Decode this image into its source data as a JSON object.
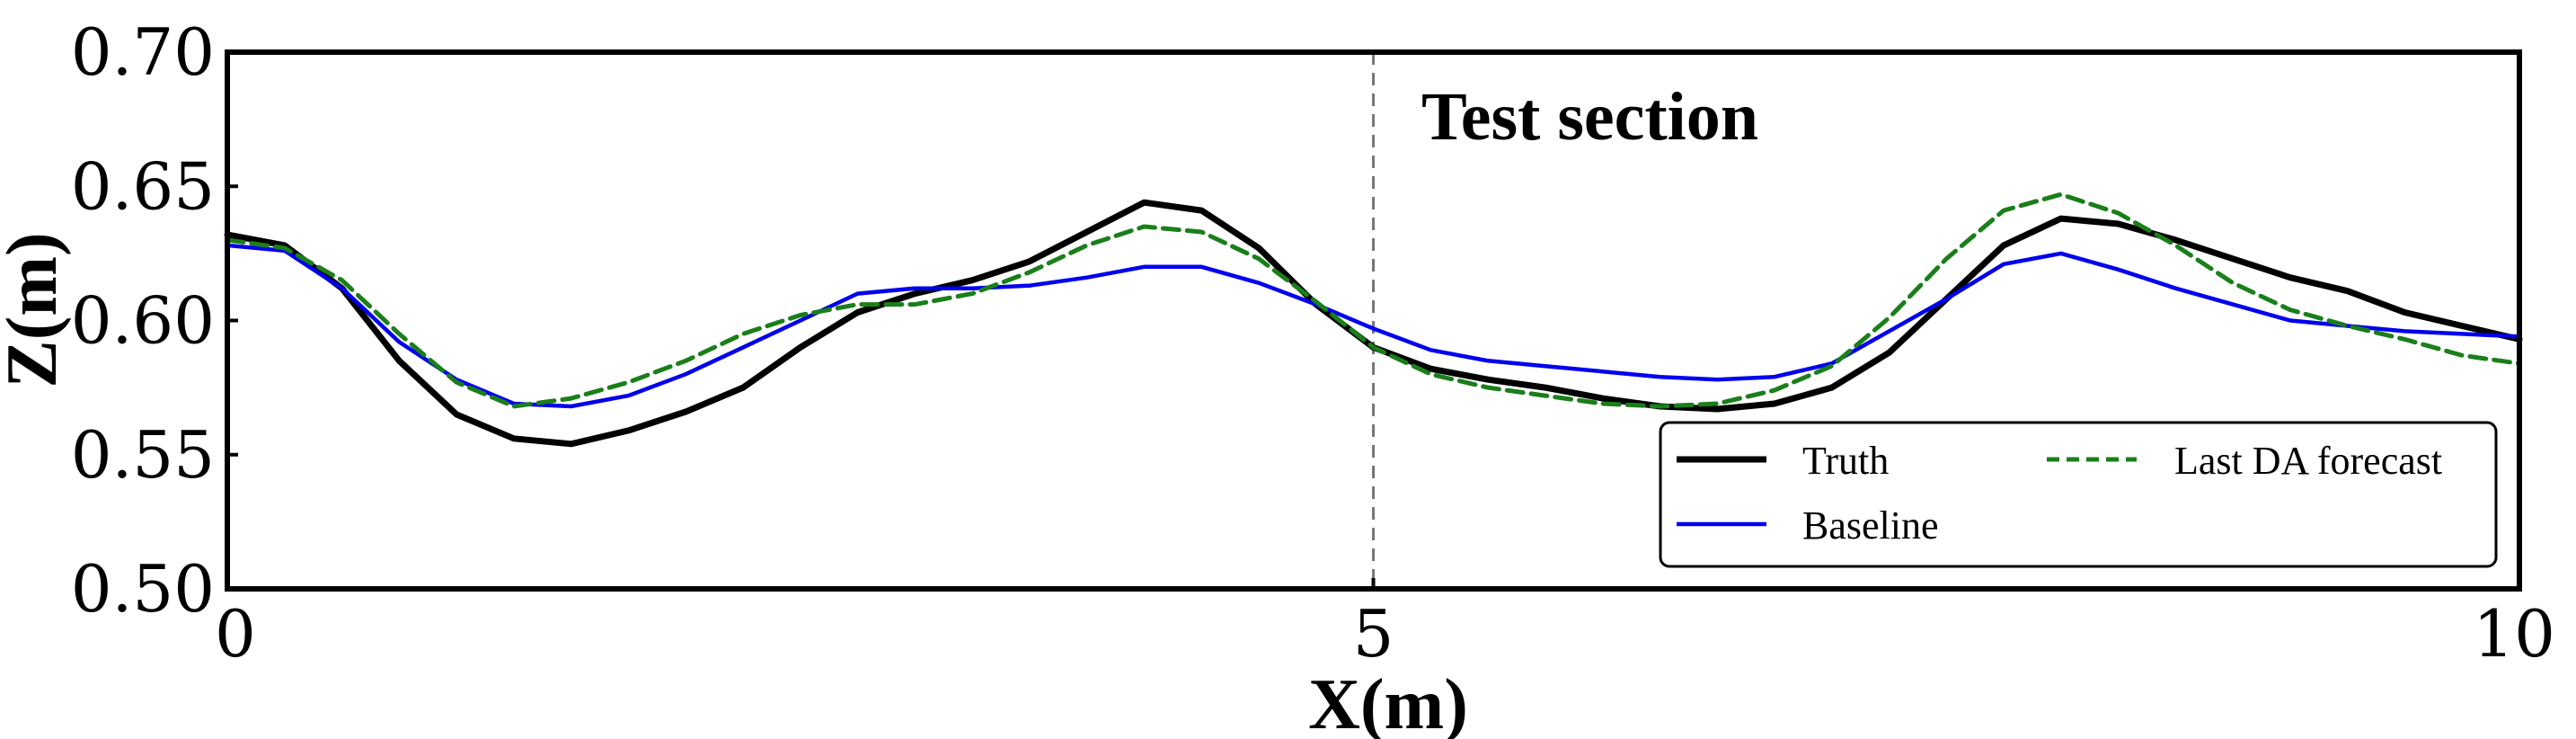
{
  "chart_data": {
    "type": "line",
    "title": "",
    "xlabel": "X(m)",
    "ylabel": "Z(m)",
    "xlim": [
      0,
      10
    ],
    "ylim": [
      0.5,
      0.7
    ],
    "xticks": [
      "0",
      "5",
      "10"
    ],
    "yticks": [
      "0.50",
      "0.55",
      "0.60",
      "0.65",
      "0.70"
    ],
    "grid": false,
    "legend_position": "lower-right",
    "annotation": {
      "text": "Test section",
      "vline_x": 5
    },
    "x": [
      0,
      0.25,
      0.5,
      0.75,
      1.0,
      1.25,
      1.5,
      1.75,
      2.0,
      2.25,
      2.5,
      2.75,
      3.0,
      3.25,
      3.5,
      3.75,
      4.0,
      4.25,
      4.5,
      4.75,
      5.0,
      5.25,
      5.5,
      5.75,
      6.0,
      6.25,
      6.5,
      6.75,
      7.0,
      7.25,
      7.5,
      7.75,
      8.0,
      8.25,
      8.5,
      8.75,
      9.0,
      9.25,
      9.5,
      9.75,
      10.0
    ],
    "series": [
      {
        "name": "Truth",
        "color": "#000000",
        "style": "solid",
        "values": [
          0.632,
          0.628,
          0.612,
          0.585,
          0.565,
          0.556,
          0.554,
          0.559,
          0.566,
          0.575,
          0.59,
          0.603,
          0.61,
          0.615,
          0.622,
          0.633,
          0.644,
          0.641,
          0.627,
          0.606,
          0.59,
          0.582,
          0.578,
          0.575,
          0.571,
          0.568,
          0.567,
          0.569,
          0.575,
          0.588,
          0.608,
          0.628,
          0.638,
          0.636,
          0.63,
          0.623,
          0.616,
          0.611,
          0.603,
          0.598,
          0.593
        ]
      },
      {
        "name": "Baseline",
        "color": "#0000ee",
        "style": "solid",
        "values": [
          0.628,
          0.626,
          0.612,
          0.592,
          0.578,
          0.569,
          0.568,
          0.572,
          0.58,
          0.59,
          0.6,
          0.61,
          0.612,
          0.612,
          0.613,
          0.616,
          0.62,
          0.62,
          0.614,
          0.606,
          0.597,
          0.589,
          0.585,
          0.583,
          0.581,
          0.579,
          0.578,
          0.579,
          0.584,
          0.596,
          0.608,
          0.621,
          0.625,
          0.619,
          0.612,
          0.606,
          0.6,
          0.598,
          0.596,
          0.595,
          0.594
        ]
      },
      {
        "name": "Last DA forecast",
        "color": "#1a7f1a",
        "style": "dashed",
        "values": [
          0.63,
          0.627,
          0.615,
          0.595,
          0.577,
          0.568,
          0.571,
          0.577,
          0.585,
          0.595,
          0.602,
          0.606,
          0.606,
          0.61,
          0.618,
          0.628,
          0.635,
          0.633,
          0.623,
          0.607,
          0.59,
          0.58,
          0.575,
          0.572,
          0.569,
          0.568,
          0.569,
          0.574,
          0.583,
          0.601,
          0.623,
          0.641,
          0.647,
          0.64,
          0.628,
          0.614,
          0.604,
          0.598,
          0.593,
          0.587,
          0.584
        ]
      }
    ]
  }
}
